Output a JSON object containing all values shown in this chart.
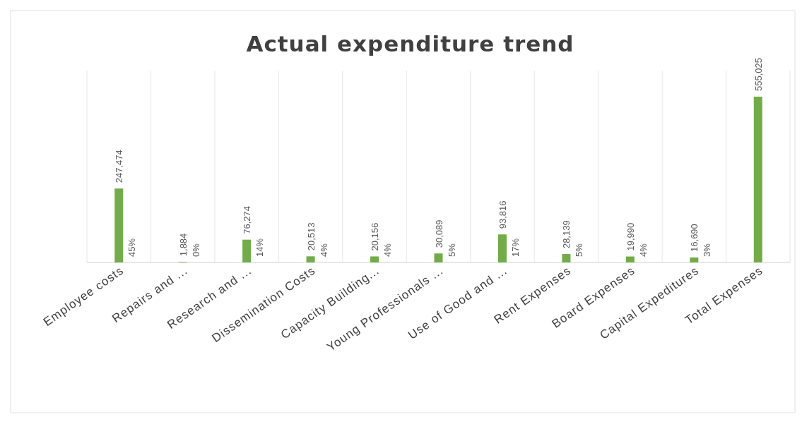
{
  "chart_data": {
    "type": "bar",
    "title": "Actual expenditure trend",
    "categories": [
      "Employee costs",
      "Repairs and ...",
      "Research and ...",
      "Dissemination Costs",
      "Capacity Building...",
      "Young Professionals ...",
      "Use of Good and ...",
      "Rent Expenses",
      "Board Expenses",
      "Capital Expeditures",
      "Total Expenses"
    ],
    "series": [
      {
        "color": "#70ad47",
        "values": [
          247474,
          1884,
          76274,
          20513,
          20156,
          30089,
          93816,
          28139,
          19990,
          16690,
          555025
        ],
        "value_labels": [
          "247,474",
          "1,884",
          "76,274",
          "20,513",
          "20,156",
          "30,089",
          "93,816",
          "28,139",
          "19,990",
          "16,690",
          "555,025"
        ]
      }
    ],
    "grid": "x",
    "tick_labels": "x",
    "annotations": [
      {
        "text": "45%",
        "x": "Employee costs",
        "y": 0
      },
      {
        "text": "0%",
        "x": "Repairs and ...",
        "y": 0
      },
      {
        "text": "14%",
        "x": "Research and ...",
        "y": 0
      },
      {
        "text": "4%",
        "x": "Dissemination Costs",
        "y": 0
      },
      {
        "text": "4%",
        "x": "Capacity Building...",
        "y": 0
      },
      {
        "text": "5%",
        "x": "Young Professionals ...",
        "y": 0
      },
      {
        "text": "17%",
        "x": "Use of Good and ...",
        "y": 0
      },
      {
        "text": "5%",
        "x": "Rent Expenses",
        "y": 0
      },
      {
        "text": "4%",
        "x": "Board Expenses",
        "y": 0
      },
      {
        "text": "3%",
        "x": "Capital Expeditures",
        "y": 0
      }
    ]
  }
}
